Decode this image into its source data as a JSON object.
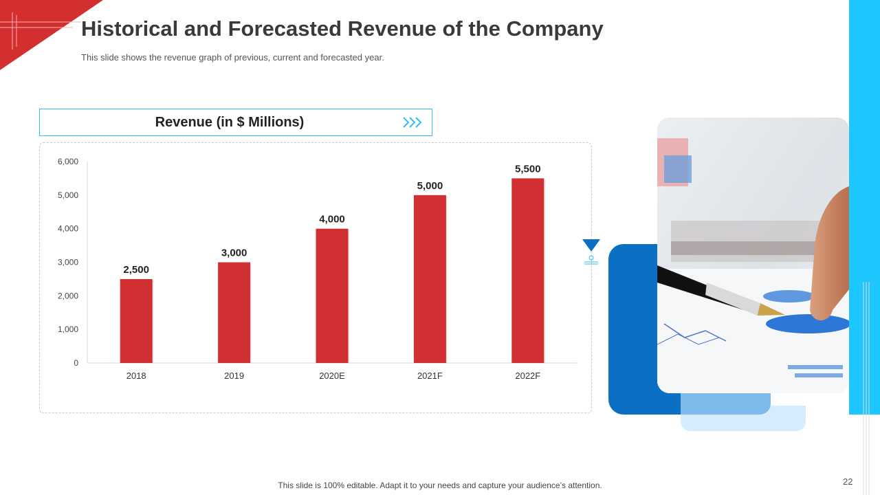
{
  "slide": {
    "title": "Historical and Forecasted Revenue of the Company",
    "subtitle": "This slide shows the revenue graph of previous, current and forecasted year.",
    "footer": "This slide is 100% editable. Adapt it to your needs and capture your audience’s attention.",
    "page_number": "22"
  },
  "colors": {
    "accent_red": "#d32f2f",
    "accent_blue": "#1ec6ff",
    "bar": "#d03032"
  },
  "chart_data": {
    "type": "bar",
    "title": "Revenue (in $ Millions)",
    "categories": [
      "2018",
      "2019",
      "2020E",
      "2021F",
      "2022F"
    ],
    "values": [
      2500,
      3000,
      4000,
      5000,
      5500
    ],
    "data_labels": [
      "2,500",
      "3,000",
      "4,000",
      "5,000",
      "5,500"
    ],
    "yticks": [
      0,
      1000,
      2000,
      3000,
      4000,
      5000,
      6000
    ],
    "ytick_labels": [
      "0",
      "1,000",
      "2,000",
      "3,000",
      "4,000",
      "5,000",
      "6,000"
    ],
    "ylim": [
      0,
      6000
    ],
    "xlabel": "",
    "ylabel": "",
    "grid": false,
    "legend": "none"
  }
}
